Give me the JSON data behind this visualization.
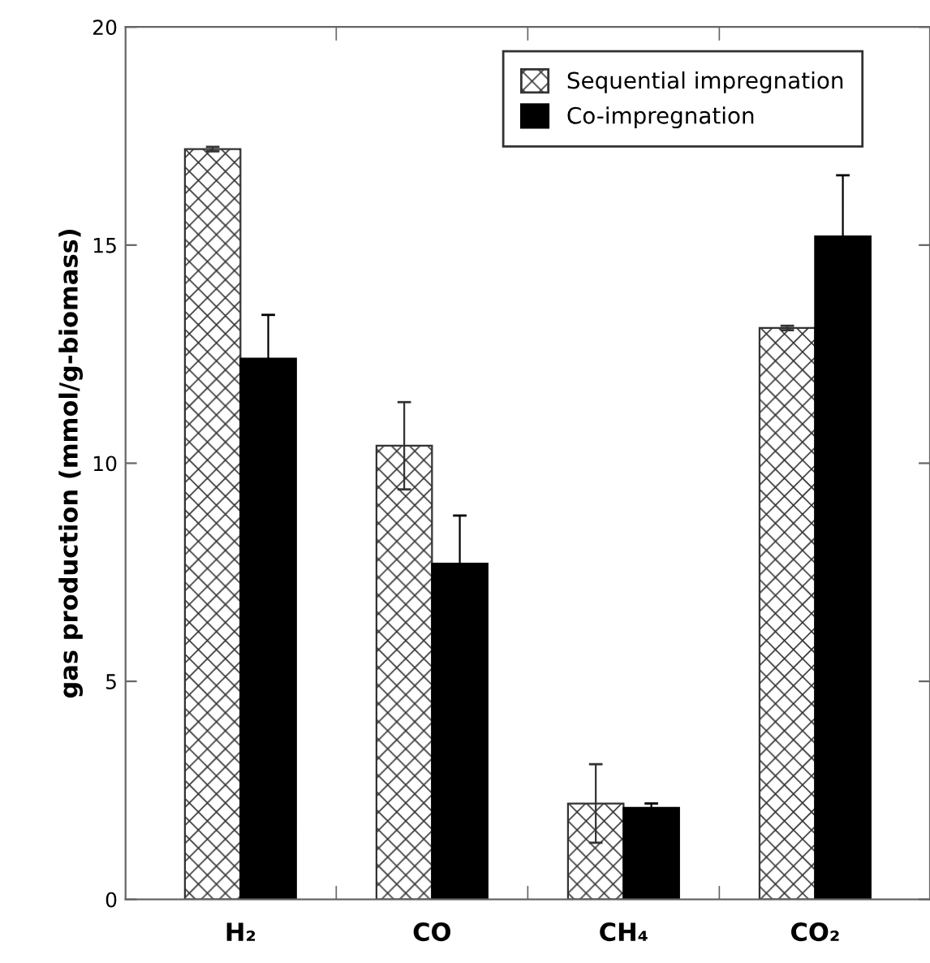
{
  "chart_data": {
    "type": "bar",
    "ylabel": "gas production (mmol/g-biomass)",
    "categories": [
      "H₂",
      "CO",
      "CH₄",
      "CO₂"
    ],
    "series": [
      {
        "name": "Sequential impregnation",
        "color": "#333333",
        "values": [
          17.2,
          10.4,
          2.2,
          13.1
        ],
        "errors": [
          0.05,
          1.0,
          0.9,
          0.05
        ]
      },
      {
        "name": "Co-impregnation",
        "color": "#000000",
        "values": [
          12.4,
          7.7,
          2.1,
          15.2
        ],
        "errors": [
          1.0,
          1.1,
          0.1,
          1.4
        ]
      }
    ],
    "ylim": [
      0,
      20
    ],
    "yticks": [
      0,
      5,
      10,
      15,
      20
    ],
    "grid": false,
    "legend": "top right"
  }
}
